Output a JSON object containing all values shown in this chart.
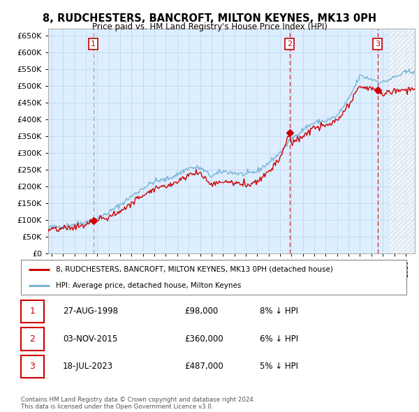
{
  "title": "8, RUDCHESTERS, BANCROFT, MILTON KEYNES, MK13 0PH",
  "subtitle": "Price paid vs. HM Land Registry's House Price Index (HPI)",
  "ylim": [
    0,
    670000
  ],
  "yticks": [
    0,
    50000,
    100000,
    150000,
    200000,
    250000,
    300000,
    350000,
    400000,
    450000,
    500000,
    550000,
    600000,
    650000
  ],
  "ytick_labels": [
    "£0",
    "£50K",
    "£100K",
    "£150K",
    "£200K",
    "£250K",
    "£300K",
    "£350K",
    "£400K",
    "£450K",
    "£500K",
    "£550K",
    "£600K",
    "£650K"
  ],
  "xlim_start": 1994.7,
  "xlim_end": 2026.8,
  "hpi_color": "#7ab3d4",
  "price_color": "#cc0000",
  "vline1_color": "#999999",
  "vline23_color": "#cc0000",
  "plot_bg_color": "#ddeeff",
  "sale_points": [
    {
      "year": 1998.65,
      "price": 98000,
      "label": "1"
    },
    {
      "year": 2015.84,
      "price": 360000,
      "label": "2"
    },
    {
      "year": 2023.54,
      "price": 487000,
      "label": "3"
    }
  ],
  "legend_line1": "8, RUDCHESTERS, BANCROFT, MILTON KEYNES, MK13 0PH (detached house)",
  "legend_line2": "HPI: Average price, detached house, Milton Keynes",
  "table_rows": [
    {
      "label": "1",
      "date": "27-AUG-1998",
      "price": "£98,000",
      "hpi": "8% ↓ HPI"
    },
    {
      "label": "2",
      "date": "03-NOV-2015",
      "price": "£360,000",
      "hpi": "6% ↓ HPI"
    },
    {
      "label": "3",
      "date": "18-JUL-2023",
      "price": "£487,000",
      "hpi": "5% ↓ HPI"
    }
  ],
  "footer": "Contains HM Land Registry data © Crown copyright and database right 2024.\nThis data is licensed under the Open Government Licence v3.0.",
  "bg_color": "#ffffff",
  "grid_color": "#c0d8f0"
}
